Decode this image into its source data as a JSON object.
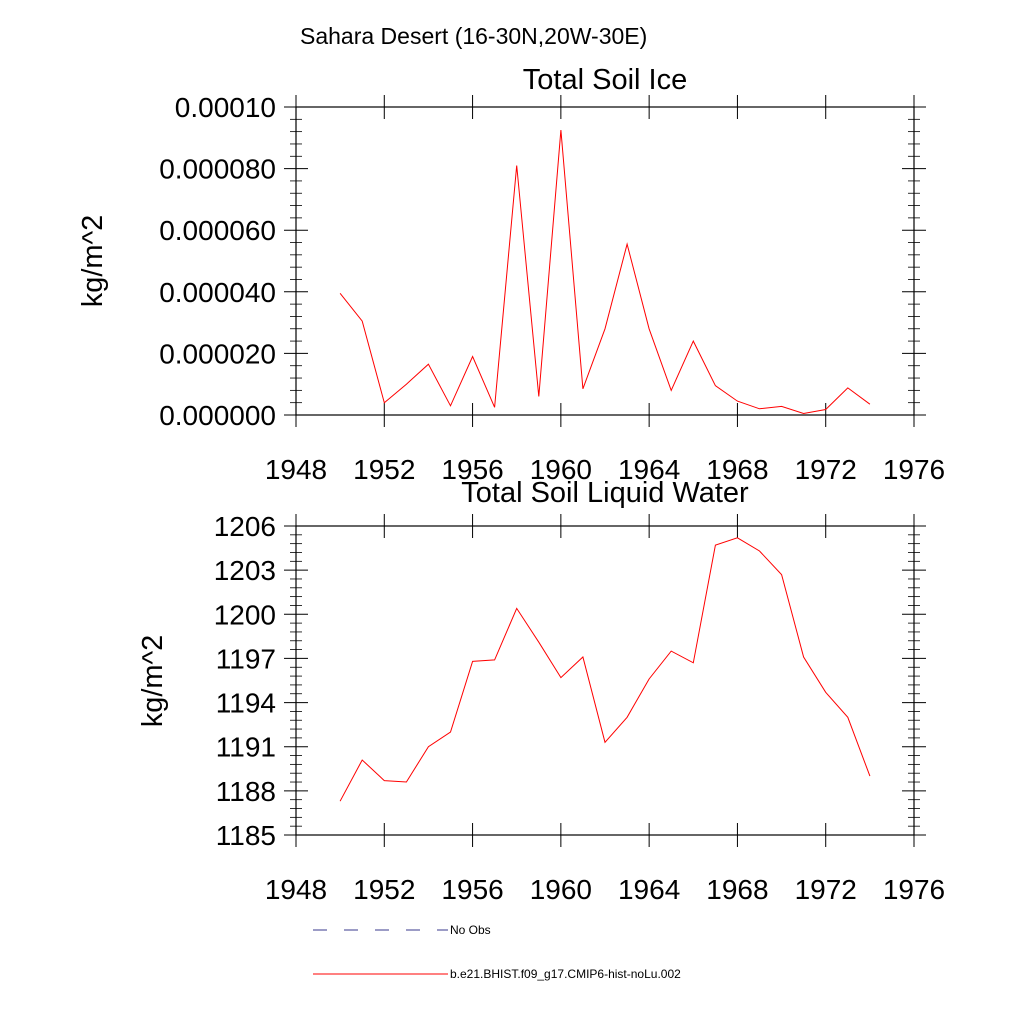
{
  "figure": {
    "title": "Sahara Desert (16-30N,20W-30E)"
  },
  "legend": {
    "items": [
      {
        "label": "No Obs",
        "color": "#3a3a8c",
        "style": "dashed"
      },
      {
        "label": "b.e21.BHIST.f09_g17.CMIP6-hist-noLu.002",
        "color": "#ff0000",
        "style": "solid"
      }
    ]
  },
  "chart_data": [
    {
      "type": "line",
      "title": "Total Soil Ice",
      "xlabel": "",
      "ylabel": "kg/m^2",
      "xlim": [
        1948,
        1976
      ],
      "ylim": [
        0,
        0.0001
      ],
      "xticks": [
        1948,
        1952,
        1956,
        1960,
        1964,
        1968,
        1972,
        1976
      ],
      "xtick_labels": [
        "1948",
        "1952",
        "1956",
        "1960",
        "1964",
        "1968",
        "1972",
        "1976"
      ],
      "yticks": [
        0,
        2e-05,
        4e-05,
        6e-05,
        8e-05,
        0.0001
      ],
      "ytick_labels": [
        "0.000000",
        "0.000020",
        "0.000040",
        "0.000060",
        "0.000080",
        "0.00010"
      ],
      "grid": false,
      "series": [
        {
          "name": "b.e21.BHIST.f09_g17.CMIP6-hist-noLu.002",
          "color": "#ff0000",
          "x": [
            1950,
            1951,
            1952,
            1953,
            1954,
            1955,
            1956,
            1957,
            1958,
            1959,
            1960,
            1961,
            1962,
            1963,
            1964,
            1965,
            1966,
            1967,
            1968,
            1969,
            1970,
            1971,
            1972,
            1973,
            1974
          ],
          "y": [
            3.95e-05,
            3.05e-05,
            4e-06,
            1e-05,
            1.65e-05,
            3e-06,
            1.9e-05,
            2.5e-06,
            8.1e-05,
            6e-06,
            9.25e-05,
            8.5e-06,
            2.8e-05,
            5.55e-05,
            2.8e-05,
            8e-06,
            2.4e-05,
            9.5e-06,
            4.5e-06,
            2e-06,
            2.8e-06,
            5e-07,
            1.8e-06,
            8.8e-06,
            3.5e-06
          ]
        }
      ]
    },
    {
      "type": "line",
      "title": "Total Soil Liquid Water",
      "xlabel": "",
      "ylabel": "kg/m^2",
      "xlim": [
        1948,
        1976
      ],
      "ylim": [
        1185,
        1206
      ],
      "xticks": [
        1948,
        1952,
        1956,
        1960,
        1964,
        1968,
        1972,
        1976
      ],
      "xtick_labels": [
        "1948",
        "1952",
        "1956",
        "1960",
        "1964",
        "1968",
        "1972",
        "1976"
      ],
      "yticks": [
        1185,
        1188,
        1191,
        1194,
        1197,
        1200,
        1203,
        1206
      ],
      "ytick_labels": [
        "1185",
        "1188",
        "1191",
        "1194",
        "1197",
        "1200",
        "1203",
        "1206"
      ],
      "grid": false,
      "series": [
        {
          "name": "b.e21.BHIST.f09_g17.CMIP6-hist-noLu.002",
          "color": "#ff0000",
          "x": [
            1950,
            1951,
            1952,
            1953,
            1954,
            1955,
            1956,
            1957,
            1958,
            1959,
            1960,
            1961,
            1962,
            1963,
            1964,
            1965,
            1966,
            1967,
            1968,
            1969,
            1970,
            1971,
            1972,
            1973,
            1974
          ],
          "y": [
            1187.3,
            1190.1,
            1188.7,
            1188.6,
            1191.0,
            1192.0,
            1196.8,
            1196.9,
            1200.4,
            1198.1,
            1195.7,
            1197.1,
            1191.3,
            1193.0,
            1195.6,
            1197.5,
            1196.7,
            1204.7,
            1205.2,
            1204.3,
            1202.7,
            1197.1,
            1194.7,
            1193.0,
            1189.0
          ]
        }
      ]
    }
  ]
}
